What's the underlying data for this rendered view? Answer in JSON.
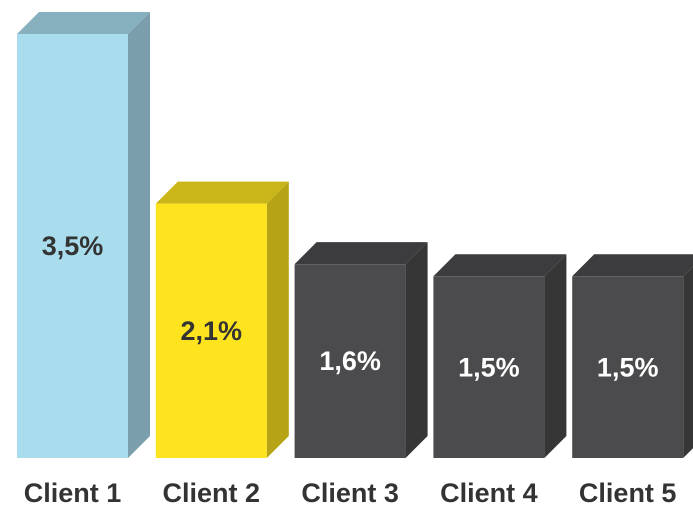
{
  "chart_data": {
    "type": "bar3d",
    "categories": [
      "Client 1",
      "Client 2",
      "Client 3",
      "Client 4",
      "Client 5"
    ],
    "values": [
      3.5,
      2.1,
      1.6,
      1.5,
      1.5
    ],
    "value_labels": [
      "3,5%",
      "2,1%",
      "1,6%",
      "1,5%",
      "1,5%"
    ],
    "colors": [
      "#a9dced",
      "#fde41f",
      "#4b4b4d",
      "#4b4b4d",
      "#4b4b4d"
    ]
  }
}
